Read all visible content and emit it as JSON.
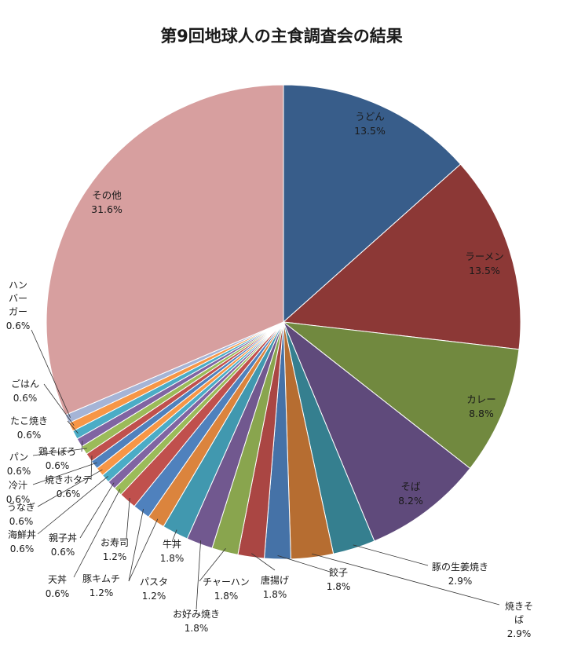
{
  "chart_data": {
    "type": "pie",
    "title": "第9回地球人の主食調査会の結果",
    "slices": [
      {
        "name": "うどん",
        "value": 13.5,
        "label": "13.5%",
        "color": "#385D8A"
      },
      {
        "name": "ラーメン",
        "value": 13.5,
        "label": "13.5%",
        "color": "#8C3836"
      },
      {
        "name": "カレー",
        "value": 8.8,
        "label": "8.8%",
        "color": "#71893F"
      },
      {
        "name": "そば",
        "value": 8.2,
        "label": "8.2%",
        "color": "#5F4A7B"
      },
      {
        "name": "豚の生姜焼き",
        "value": 2.9,
        "label": "2.9%",
        "color": "#357F8F"
      },
      {
        "name": "焼きそば",
        "value": 2.9,
        "label": "2.9%",
        "color": "#B66D31"
      },
      {
        "name": "餃子",
        "value": 1.8,
        "label": "1.8%",
        "color": "#4572A7"
      },
      {
        "name": "唐揚げ",
        "value": 1.8,
        "label": "1.8%",
        "color": "#AA4643"
      },
      {
        "name": "チャーハン",
        "value": 1.8,
        "label": "1.8%",
        "color": "#89A54E"
      },
      {
        "name": "お好み焼き",
        "value": 1.8,
        "label": "1.8%",
        "color": "#71588F"
      },
      {
        "name": "牛丼",
        "value": 1.8,
        "label": "1.8%",
        "color": "#4198AF"
      },
      {
        "name": "パスタ",
        "value": 1.2,
        "label": "1.2%",
        "color": "#DB843D"
      },
      {
        "name": "豚キムチ",
        "value": 1.2,
        "label": "1.2%",
        "color": "#4F81BD"
      },
      {
        "name": "お寿司",
        "value": 1.2,
        "label": "1.2%",
        "color": "#C0504D"
      },
      {
        "name": "天丼",
        "value": 0.6,
        "label": "0.6%",
        "color": "#9BBB59"
      },
      {
        "name": "親子丼",
        "value": 0.6,
        "label": "0.6%",
        "color": "#8064A2"
      },
      {
        "name": "海鮮丼",
        "value": 0.6,
        "label": "0.6%",
        "color": "#4BACC6"
      },
      {
        "name": "うなぎ",
        "value": 0.6,
        "label": "0.6%",
        "color": "#F79646"
      },
      {
        "name": "冷汁",
        "value": 0.6,
        "label": "0.6%",
        "color": "#4F81BD"
      },
      {
        "name": "焼きホタテ",
        "value": 0.6,
        "label": "0.6%",
        "color": "#C0504D"
      },
      {
        "name": "パン",
        "value": 0.6,
        "label": "0.6%",
        "color": "#9BBB59"
      },
      {
        "name": "鶏そぼろ",
        "value": 0.6,
        "label": "0.6%",
        "color": "#8064A2"
      },
      {
        "name": "たこ焼き",
        "value": 0.6,
        "label": "0.6%",
        "color": "#4BACC6"
      },
      {
        "name": "ごはん",
        "value": 0.6,
        "label": "0.6%",
        "color": "#F79646"
      },
      {
        "name": "ハンバーガー",
        "value": 0.6,
        "label": "0.6%",
        "color": "#A5B4D6"
      },
      {
        "name": "その他",
        "value": 31.6,
        "label": "31.6%",
        "color": "#D79F9F"
      }
    ],
    "start_angle": "12 o'clock",
    "direction": "clockwise",
    "legend": "none"
  }
}
